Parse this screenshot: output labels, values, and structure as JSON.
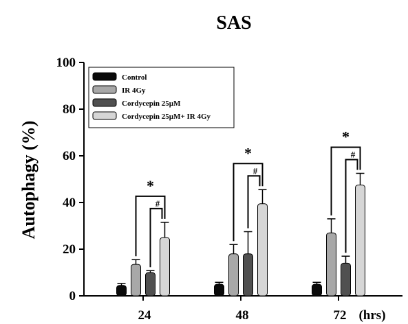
{
  "chart_data": {
    "type": "bar",
    "title": "SAS",
    "ylabel": "Autophagy (%)",
    "xunit": "(hrs)",
    "categories": [
      "24",
      "48",
      "72"
    ],
    "ylim": [
      0,
      100
    ],
    "yticks": [
      "0",
      "20",
      "40",
      "60",
      "80",
      "100"
    ],
    "grid": false,
    "legend_position": "top-left",
    "series": [
      {
        "name": "Control",
        "color": "#0a0a0a",
        "values": [
          4.5,
          5,
          5
        ],
        "errors": [
          0.8,
          0.8,
          0.8
        ]
      },
      {
        "name": "IR 4Gy",
        "color": "#a8a8a8",
        "values": [
          13.5,
          18,
          27
        ],
        "errors": [
          2,
          4,
          6
        ]
      },
      {
        "name": "Cordycepin 25µM",
        "color": "#505050",
        "values": [
          10,
          18,
          14
        ],
        "errors": [
          0.8,
          9.5,
          3
        ]
      },
      {
        "name": "Cordycepin 25µM+ IR 4Gy",
        "color": "#d6d6d6",
        "values": [
          25,
          39.5,
          47.5
        ],
        "errors": [
          6.5,
          6,
          5
        ]
      }
    ],
    "annotations": [
      {
        "category": "24",
        "star": "*",
        "hash": "#"
      },
      {
        "category": "48",
        "star": "*",
        "hash": "#"
      },
      {
        "category": "72",
        "star": "*",
        "hash": "#"
      }
    ]
  }
}
